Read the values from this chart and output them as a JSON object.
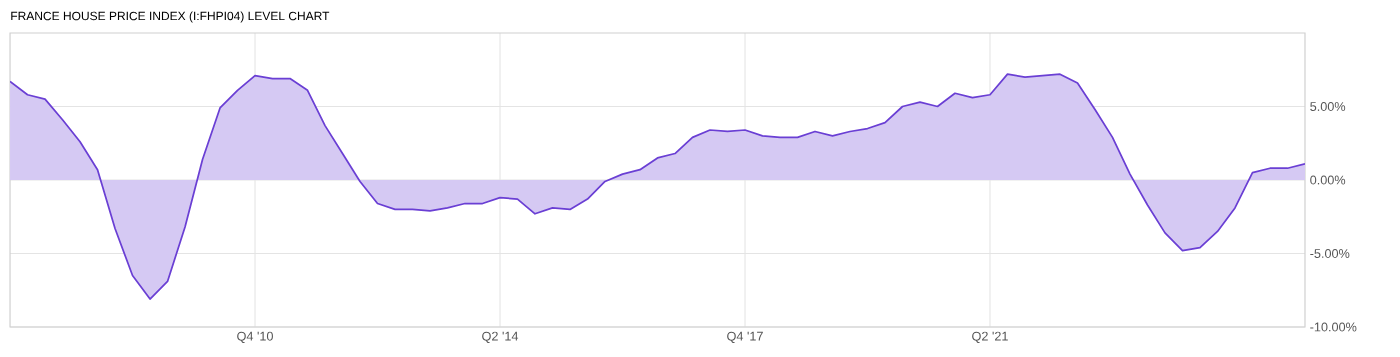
{
  "chart_data": {
    "type": "area",
    "title": "FRANCE HOUSE PRICE INDEX (I:FHPI04) LEVEL CHART",
    "categories": [
      null,
      null,
      null,
      null,
      null,
      null,
      null,
      null,
      null,
      null,
      null,
      null,
      null,
      null,
      "Q4 '10",
      null,
      null,
      null,
      null,
      null,
      null,
      null,
      null,
      null,
      null,
      null,
      null,
      null,
      "Q2 '14",
      null,
      null,
      null,
      null,
      null,
      null,
      null,
      null,
      null,
      null,
      null,
      null,
      null,
      "Q4 '17",
      null,
      null,
      null,
      null,
      null,
      null,
      null,
      null,
      null,
      null,
      null,
      null,
      null,
      "Q2 '21",
      null,
      null,
      null,
      null,
      null,
      null,
      null,
      null,
      null,
      null,
      null,
      null,
      null,
      null,
      null,
      null,
      null,
      null
    ],
    "series": [
      {
        "color": "#6a3fd4",
        "values": [
          6.7,
          5.8,
          5.5,
          4.1,
          2.6,
          0.7,
          -3.3,
          -6.5,
          -8.1,
          -6.9,
          -3.2,
          1.4,
          4.9,
          6.1,
          7.1,
          6.9,
          6.9,
          6.1,
          3.7,
          1.8,
          -0.1,
          -1.6,
          -2.0,
          -2.0,
          -2.1,
          -1.9,
          -1.6,
          -1.6,
          -1.2,
          -1.3,
          -2.3,
          -1.9,
          -2.0,
          -1.3,
          -0.1,
          0.4,
          0.7,
          1.5,
          1.8,
          2.9,
          3.4,
          3.3,
          3.4,
          3.0,
          2.9,
          2.9,
          3.3,
          3.0,
          3.3,
          3.5,
          3.9,
          5.0,
          5.3,
          5.0,
          5.9,
          5.6,
          5.8,
          7.2,
          7.0,
          7.1,
          7.2,
          6.6,
          4.8,
          2.9,
          0.4,
          -1.7,
          -3.6,
          -4.8,
          -4.6,
          -3.5,
          -1.9,
          0.5,
          0.8,
          0.8,
          1.1
        ]
      }
    ],
    "ylim": [
      -10,
      10
    ],
    "yticks": [
      {
        "value": -10,
        "label": "-10.00%"
      },
      {
        "value": -5,
        "label": "-5.00%"
      },
      {
        "value": 0,
        "label": "0.00%"
      },
      {
        "value": 5,
        "label": "5.00%"
      }
    ],
    "grid": true
  }
}
